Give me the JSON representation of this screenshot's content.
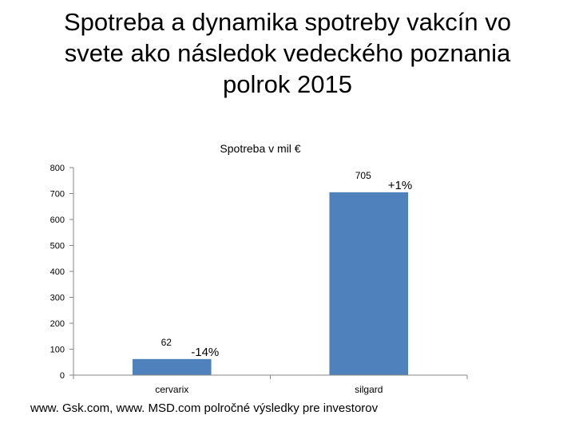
{
  "slide": {
    "title_lines": [
      "Spotreba a dynamika spotreby vakcín vo",
      "svete ako následok vedeckého poznania",
      "polrok 2015"
    ],
    "source_note": "www. Gsk.com, www. MSD.com polročné výsledky pre investorov"
  },
  "chart_data": {
    "type": "bar",
    "title": "Spotreba v mil €",
    "categories": [
      "cervarix",
      "silgard"
    ],
    "values": [
      62,
      705
    ],
    "value_labels": [
      "62",
      "705"
    ],
    "change_labels": [
      "-14%",
      "+1%"
    ],
    "xlabel": "",
    "ylabel": "",
    "ylim": [
      0,
      800
    ],
    "yticks": [
      0,
      100,
      200,
      300,
      400,
      500,
      600,
      700,
      800
    ],
    "grid": false,
    "legend": "none",
    "bar_color": "#4f81bd",
    "axis_color": "#868686"
  }
}
